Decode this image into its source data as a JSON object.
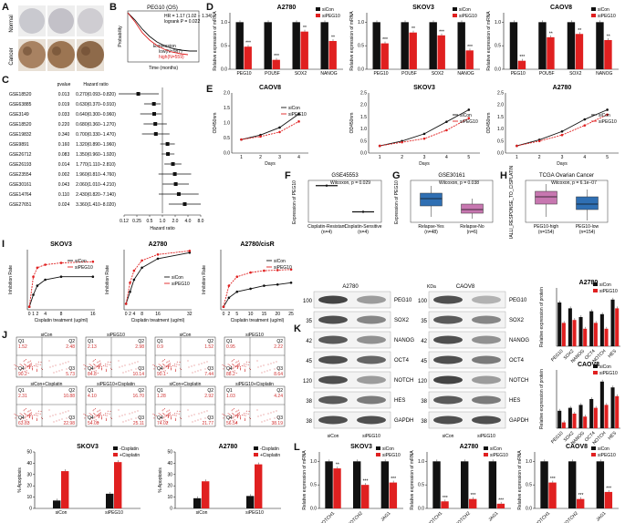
{
  "panel_labels": [
    "A",
    "B",
    "C",
    "D",
    "E",
    "F",
    "G",
    "H",
    "I",
    "J",
    "K",
    "L"
  ],
  "panelA": {
    "row_labels": [
      "Normal",
      "Cancer"
    ],
    "normal_colors": [
      "#c9c9cf",
      "#c3c1c8",
      "#cfcdd2"
    ],
    "cancer_colors": [
      "#a88262",
      "#9c7552",
      "#8e6a4a"
    ]
  },
  "panelB": {
    "title": "PEG10 (OS)",
    "stats": [
      "HR = 1.17 (1.02 − 1.34)",
      "logrank P = 0.022"
    ],
    "legend_title": "Expression",
    "legend": [
      "low(N=987)",
      "high(N=559)"
    ],
    "xlabel": "Time (months)",
    "ylabel": "Probability"
  },
  "panelC": {
    "header_p": "pvalue",
    "header_hr": "Hazard ratio",
    "rows": [
      {
        "name": "GSE18520",
        "p": "0.013",
        "hr": "0.270(0.093−0.820)",
        "est": 0.27,
        "lo": 0.093,
        "hi": 0.82
      },
      {
        "name": "GSE63885",
        "p": "0.019",
        "hr": "0.630(0.370−0.910)",
        "est": 0.63,
        "lo": 0.37,
        "hi": 0.91
      },
      {
        "name": "GSE3149",
        "p": "0.033",
        "hr": "0.640(0.300−0.960)",
        "est": 0.64,
        "lo": 0.3,
        "hi": 0.96
      },
      {
        "name": "GSE18520",
        "p": "0.220",
        "hr": "0.680(0.360−1.270)",
        "est": 0.68,
        "lo": 0.36,
        "hi": 1.27
      },
      {
        "name": "GSE19832",
        "p": "0.340",
        "hr": "0.700(0.330−1.470)",
        "est": 0.7,
        "lo": 0.33,
        "hi": 1.47
      },
      {
        "name": "GSE9891",
        "p": "0.160",
        "hr": "1.320(0.890−1.960)",
        "est": 1.32,
        "lo": 0.89,
        "hi": 1.96
      },
      {
        "name": "GSE26712",
        "p": "0.083",
        "hr": "1.350(0.960−1.920)",
        "est": 1.35,
        "lo": 0.96,
        "hi": 1.92
      },
      {
        "name": "GSE26193",
        "p": "0.014",
        "hr": "1.770(1.110−2.810)",
        "est": 1.77,
        "lo": 1.11,
        "hi": 2.81
      },
      {
        "name": "GSE23554",
        "p": "0.002",
        "hr": "1.960(0.810−4.760)",
        "est": 1.96,
        "lo": 0.81,
        "hi": 4.76
      },
      {
        "name": "GSE30161",
        "p": "0.043",
        "hr": "2.060(1.010−4.210)",
        "est": 2.06,
        "lo": 1.01,
        "hi": 4.21
      },
      {
        "name": "GSE14764",
        "p": "0.110",
        "hr": "2.430(0.820−7.140)",
        "est": 2.43,
        "lo": 0.82,
        "hi": 7.14
      },
      {
        "name": "GSE27651",
        "p": "0.024",
        "hr": "3.360(1.410−8.020)",
        "est": 3.36,
        "lo": 1.41,
        "hi": 8.02
      }
    ],
    "ticks": [
      "0.12",
      "0.25",
      "0.5",
      "1.0",
      "2.0",
      "4.0",
      "8.0"
    ],
    "tick_values": [
      0.125,
      0.25,
      0.5,
      1,
      2,
      4,
      8
    ]
  },
  "colors": {
    "black": "#111111",
    "red": "#e02020",
    "blue": "#2f6fb3",
    "pink": "#c777b0",
    "orange": "#f08a4a",
    "gray": "#555555"
  },
  "legend": {
    "sicon": "siCon",
    "sipeg10": "siPEG10"
  },
  "chart_data": [
    {
      "id": "D1",
      "type": "bar",
      "title": "A2780",
      "ylabel": "Relative expression of mRNA",
      "categories": [
        "PEG10",
        "POU5F",
        "SOX2",
        "NANOG"
      ],
      "series": [
        {
          "name": "siCon",
          "values": [
            1,
            1,
            1,
            1
          ]
        },
        {
          "name": "siPEG10",
          "values": [
            0.48,
            0.2,
            0.8,
            0.6
          ]
        }
      ],
      "ylim": [
        0,
        1.2
      ],
      "yticks": [
        "0.0",
        "0.5",
        "1.0"
      ],
      "stars": [
        "***",
        "***",
        "**",
        "**"
      ]
    },
    {
      "id": "D2",
      "type": "bar",
      "title": "SKOV3",
      "ylabel": "Relative expression of mRNA",
      "categories": [
        "PEG10",
        "POU5F",
        "SOX2",
        "NANOG"
      ],
      "series": [
        {
          "name": "siCon",
          "values": [
            1,
            1,
            1,
            1
          ]
        },
        {
          "name": "siPEG10",
          "values": [
            0.55,
            0.78,
            0.72,
            0.4
          ]
        }
      ],
      "ylim": [
        0,
        1.2
      ],
      "yticks": [
        "0.0",
        "0.5",
        "1.0"
      ],
      "stars": [
        "***",
        "**",
        "***",
        "***"
      ]
    },
    {
      "id": "D3",
      "type": "bar",
      "title": "CAOV8",
      "ylabel": "Relative expression of mRNA",
      "categories": [
        "PEG10",
        "POU5F",
        "SOX2",
        "NANOG"
      ],
      "series": [
        {
          "name": "siCon",
          "values": [
            1,
            1,
            1,
            1
          ]
        },
        {
          "name": "siPEG10",
          "values": [
            0.18,
            0.68,
            0.75,
            0.62
          ]
        }
      ],
      "ylim": [
        0,
        1.2
      ],
      "yticks": [
        "0.0",
        "0.5",
        "1.0"
      ],
      "stars": [
        "***",
        "**",
        "**",
        "**"
      ]
    },
    {
      "id": "E1",
      "type": "line",
      "title": "CAOV8",
      "xlabel": "Days",
      "ylabel": "OD450nm",
      "x": [
        1,
        2,
        3,
        4
      ],
      "series": [
        {
          "name": "siCon",
          "values": [
            0.45,
            0.6,
            0.85,
            1.3
          ]
        },
        {
          "name": "siPEG10",
          "values": [
            0.45,
            0.55,
            0.7,
            1.05
          ]
        }
      ],
      "ylim": [
        0,
        2
      ],
      "yticks": [
        "0.0",
        "0.5",
        "1.0",
        "1.5",
        "2.0"
      ]
    },
    {
      "id": "E2",
      "type": "line",
      "title": "SKOV3",
      "xlabel": "Days",
      "ylabel": "OD450nm",
      "x": [
        1,
        2,
        3,
        4,
        5
      ],
      "series": [
        {
          "name": "siCon",
          "values": [
            0.3,
            0.5,
            0.8,
            1.3,
            1.8
          ]
        },
        {
          "name": "siPEG10",
          "values": [
            0.3,
            0.45,
            0.6,
            0.95,
            1.45
          ]
        }
      ],
      "ylim": [
        0,
        2.5
      ],
      "yticks": [
        "0.0",
        "0.5",
        "1.0",
        "1.5",
        "2.0",
        "2.5"
      ]
    },
    {
      "id": "E3",
      "type": "line",
      "title": "A2780",
      "xlabel": "Days",
      "ylabel": "OD450nm",
      "x": [
        1,
        2,
        3,
        4,
        5
      ],
      "series": [
        {
          "name": "siCon",
          "values": [
            0.3,
            0.55,
            0.9,
            1.4,
            1.8
          ]
        },
        {
          "name": "siPEG10",
          "values": [
            0.3,
            0.5,
            0.75,
            1.15,
            1.6
          ]
        }
      ],
      "ylim": [
        0,
        2.5
      ],
      "yticks": [
        "0.0",
        "0.5",
        "1.0",
        "1.5",
        "2.0",
        "2.5"
      ]
    },
    {
      "id": "F",
      "type": "bar",
      "title": "GSE45553",
      "ylabel": "Expression of PEG10",
      "categories": [
        "Cisplatin-Resistant\n(n=4)",
        "Cisplatin-Sensitive\n(n=4)"
      ],
      "values": [
        7.0,
        2.0
      ],
      "ylim": [
        0,
        8
      ],
      "annotation": "Wilcoxon, p = 0.029"
    },
    {
      "id": "G",
      "type": "box",
      "title": "GSE30161",
      "ylabel": "Expression of PEG10",
      "categories": [
        "Relapse-Yes\n(n=48)",
        "Relapse-No\n(n=6)"
      ],
      "annotation": "Wilcoxon, p = 0.038"
    },
    {
      "id": "H",
      "type": "box",
      "title": "TCGA Ovarian Cancer",
      "ylabel": "IALLI_RESPONSE_TO_CISPLATIN",
      "categories": [
        "PEG10-high\n(n=154)",
        "PEG10-low\n(n=154)"
      ],
      "annotation": "Wilcoxon, p = 6.1e−07"
    },
    {
      "id": "I1",
      "type": "line",
      "title": "SKOV3",
      "xlabel": "Cisplatin treatment (ug/ml)",
      "ylabel": "Inhibition Rate",
      "x": [
        0,
        1,
        2,
        4,
        8,
        16
      ],
      "series": [
        {
          "name": "siCon",
          "values": [
            0.05,
            0.25,
            0.4,
            0.5,
            0.55,
            0.55
          ]
        },
        {
          "name": "siPEG10",
          "values": [
            0.05,
            0.55,
            0.7,
            0.75,
            0.78,
            0.8
          ]
        }
      ],
      "ylim": [
        0,
        1
      ]
    },
    {
      "id": "I2",
      "type": "line",
      "title": "A2780",
      "xlabel": "Cisplatin treatment (ug/ml)",
      "ylabel": "Inhibition Rate",
      "x": [
        0,
        2,
        4,
        8,
        16,
        32
      ],
      "series": [
        {
          "name": "siCon",
          "values": [
            0.1,
            0.3,
            0.5,
            0.7,
            0.85,
            0.95
          ]
        },
        {
          "name": "siPEG10",
          "values": [
            0.1,
            0.45,
            0.65,
            0.82,
            0.92,
            0.98
          ]
        }
      ],
      "ylim": [
        0,
        1
      ]
    },
    {
      "id": "I3",
      "type": "line",
      "title": "A2780/cisR",
      "xlabel": "Cisplatin treatment (ug/ml)",
      "ylabel": "Inhibition Rate",
      "x": [
        0,
        2,
        5,
        10,
        15,
        20,
        25
      ],
      "series": [
        {
          "name": "siCon",
          "values": [
            0.05,
            0.2,
            0.3,
            0.35,
            0.4,
            0.42,
            0.45
          ]
        },
        {
          "name": "siPEG10",
          "values": [
            0.05,
            0.4,
            0.55,
            0.62,
            0.65,
            0.66,
            0.67
          ]
        }
      ],
      "ylim": [
        0,
        1
      ]
    },
    {
      "id": "J1",
      "type": "bar",
      "title": "SKOV3",
      "ylabel": "% Apoptosis",
      "categories": [
        "siCon",
        "siPEG10"
      ],
      "series": [
        {
          "name": "-Cisplatin",
          "values": [
            7,
            13
          ]
        },
        {
          "name": "+Cisplatin",
          "values": [
            33,
            41
          ]
        }
      ],
      "ylim": [
        0,
        50
      ],
      "yticks": [
        "0",
        "10",
        "20",
        "30",
        "40",
        "50"
      ]
    },
    {
      "id": "J2",
      "type": "bar",
      "title": "A2780",
      "ylabel": "% Apoptosis",
      "categories": [
        "siCon",
        "siPEG10"
      ],
      "series": [
        {
          "name": "-Cisplatin",
          "values": [
            9,
            11
          ]
        },
        {
          "name": "+Cisplatin",
          "values": [
            24,
            39
          ]
        }
      ],
      "ylim": [
        0,
        50
      ],
      "yticks": [
        "0",
        "10",
        "20",
        "30",
        "40",
        "50"
      ]
    },
    {
      "id": "K1",
      "type": "bar",
      "title": "A2780",
      "ylabel": "Relative expression of protein",
      "categories": [
        "PEG10",
        "SOX2",
        "NANOG",
        "OCT4",
        "NOTCH",
        "HES"
      ],
      "series": [
        {
          "name": "siCon",
          "values": [
            1.5,
            1.3,
            1.0,
            1.2,
            1.1,
            1.6
          ]
        },
        {
          "name": "siPEG10",
          "values": [
            0.8,
            0.9,
            0.6,
            0.8,
            0.6,
            1.3
          ]
        }
      ],
      "ylim": [
        0,
        2
      ]
    },
    {
      "id": "K2",
      "type": "bar",
      "title": "CAOV8",
      "ylabel": "Relative expression of protein",
      "categories": [
        "PEG10",
        "SOX2",
        "NANOG",
        "OCT4",
        "NOTCH",
        "HES"
      ],
      "series": [
        {
          "name": "siCon",
          "values": [
            0.6,
            0.7,
            0.8,
            1.0,
            1.6,
            1.4
          ]
        },
        {
          "name": "siPEG10",
          "values": [
            0.2,
            0.5,
            0.4,
            0.7,
            0.8,
            1.1
          ]
        }
      ],
      "ylim": [
        0,
        2
      ]
    },
    {
      "id": "L1",
      "type": "bar",
      "title": "SKOV3",
      "ylabel": "Relative expression of mRNA",
      "categories": [
        "NOTCH1",
        "NOTCH2",
        "JAG1"
      ],
      "series": [
        {
          "name": "siCon",
          "values": [
            1,
            1,
            1
          ]
        },
        {
          "name": "siPEG10",
          "values": [
            0.85,
            0.5,
            0.55
          ]
        }
      ],
      "ylim": [
        0,
        1.2
      ],
      "yticks": [
        "0.0",
        "0.5",
        "1.0"
      ],
      "stars": [
        "**",
        "***",
        "***"
      ]
    },
    {
      "id": "L2",
      "type": "bar",
      "title": "A2780",
      "ylabel": "Relative expression of mRNA",
      "categories": [
        "NOTCH1",
        "NOTCH2",
        "JAG1"
      ],
      "series": [
        {
          "name": "siCon",
          "values": [
            1,
            1,
            1
          ]
        },
        {
          "name": "siPEG10",
          "values": [
            0.15,
            0.2,
            0.1
          ]
        }
      ],
      "ylim": [
        0,
        1.2
      ],
      "yticks": [
        "0.0",
        "0.5",
        "1.0"
      ],
      "stars": [
        "***",
        "***",
        "***"
      ]
    },
    {
      "id": "L3",
      "type": "bar",
      "title": "CAOV8",
      "ylabel": "Relative expression of mRNA",
      "categories": [
        "NOTCH1",
        "NOTCH2",
        "JAG1"
      ],
      "series": [
        {
          "name": "siCon",
          "values": [
            1,
            1,
            1
          ]
        },
        {
          "name": "siPEG10",
          "values": [
            0.55,
            0.2,
            0.35
          ]
        }
      ],
      "ylim": [
        0,
        1.2
      ],
      "yticks": [
        "0.0",
        "0.5",
        "1.0"
      ],
      "stars": [
        "***",
        "***",
        "***"
      ]
    }
  ],
  "panelJ": {
    "plots": [
      {
        "label": "siCon",
        "q": [
          "1.52",
          "2.48",
          "90.2",
          "5.73"
        ]
      },
      {
        "label": "siPEG10",
        "q": [
          "2.13",
          "2.98",
          "84.8",
          "10.14"
        ]
      },
      {
        "label": "siCon",
        "q": [
          "0.9",
          "1.52",
          "90.1",
          "7.44"
        ]
      },
      {
        "label": "siPEG10",
        "q": [
          "0.95",
          "2.22",
          "88.2",
          "8.64"
        ]
      },
      {
        "label": "siCon+Cisplatin",
        "q": [
          "2.31",
          "10.88",
          "63.83",
          "22.98"
        ]
      },
      {
        "label": "siPEG10+Cisplatin",
        "q": [
          "4.10",
          "16.70",
          "54.09",
          "25.11"
        ]
      },
      {
        "label": "siCon+Cisplatin",
        "q": [
          "1.28",
          "2.92",
          "74.02",
          "21.77"
        ]
      },
      {
        "label": "siPEG10+Cisplatin",
        "q": [
          "1.03",
          "4.24",
          "56.54",
          "38.19"
        ]
      }
    ],
    "qnames": [
      "Q1",
      "Q2",
      "Q4",
      "Q3"
    ],
    "legend_bar": [
      "-Cisplatin",
      "+Cisplatin"
    ],
    "sig": "***"
  },
  "panelK": {
    "left_title": "A2780",
    "right_title": "CAOV8",
    "kda_header": "KDa",
    "kda": [
      "100",
      "35",
      "42",
      "45",
      "120",
      "38",
      "38"
    ],
    "proteins": [
      "PEG10",
      "SOX2",
      "NANOG",
      "OCT4",
      "NOTCH",
      "HES",
      "GAPDH"
    ],
    "lanes": [
      "siCon",
      "siPEG10"
    ],
    "left_intensity": [
      [
        0.85,
        0.45
      ],
      [
        0.8,
        0.55
      ],
      [
        0.75,
        0.5
      ],
      [
        0.8,
        0.7
      ],
      [
        0.8,
        0.45
      ],
      [
        0.75,
        0.6
      ],
      [
        0.8,
        0.8
      ]
    ],
    "right_intensity": [
      [
        0.8,
        0.35
      ],
      [
        0.75,
        0.55
      ],
      [
        0.8,
        0.5
      ],
      [
        0.8,
        0.6
      ],
      [
        0.85,
        0.45
      ],
      [
        0.75,
        0.6
      ],
      [
        0.8,
        0.8
      ]
    ]
  }
}
